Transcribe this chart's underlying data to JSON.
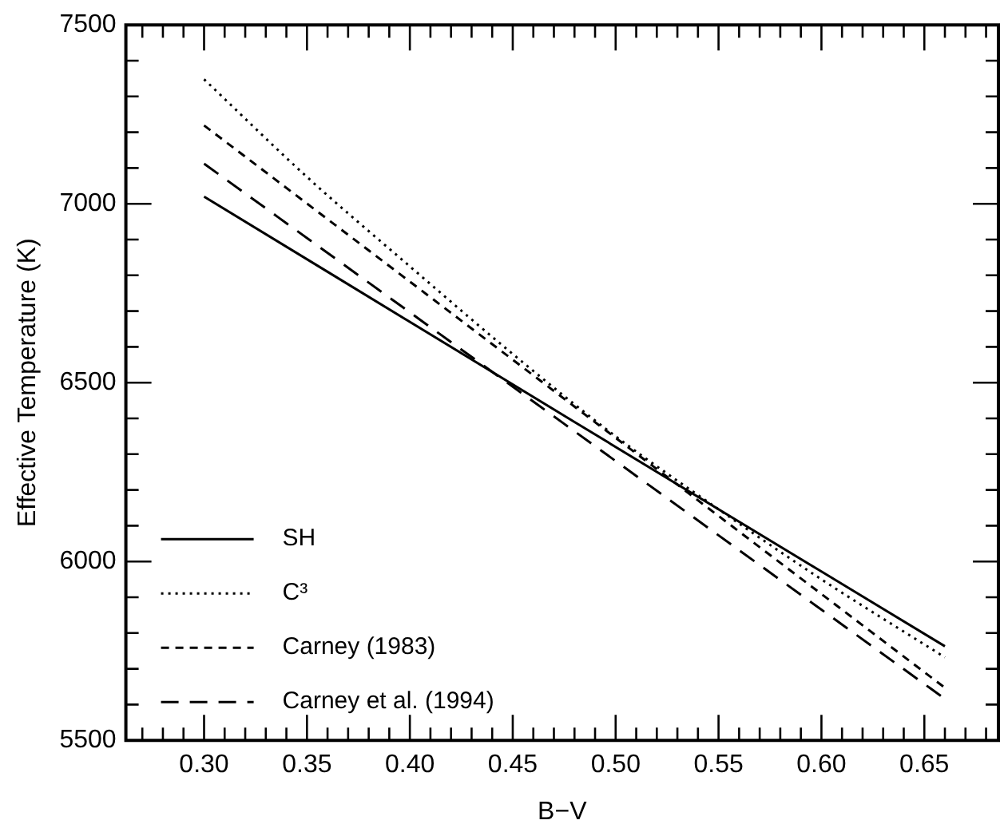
{
  "chart_data": {
    "type": "line",
    "xlabel": "B−V",
    "ylabel": "Effective Temperature (K)",
    "xlim": [
      0.262,
      0.686
    ],
    "ylim": [
      5500,
      7500
    ],
    "xticks": [
      {
        "value": 0.27,
        "label": null
      },
      {
        "value": 0.28,
        "label": null
      },
      {
        "value": 0.29,
        "label": null
      },
      {
        "value": 0.3,
        "label": "0.30"
      },
      {
        "value": 0.31,
        "label": null
      },
      {
        "value": 0.32,
        "label": null
      },
      {
        "value": 0.33,
        "label": null
      },
      {
        "value": 0.34,
        "label": null
      },
      {
        "value": 0.35,
        "label": "0.35"
      },
      {
        "value": 0.36,
        "label": null
      },
      {
        "value": 0.37,
        "label": null
      },
      {
        "value": 0.38,
        "label": null
      },
      {
        "value": 0.39,
        "label": null
      },
      {
        "value": 0.4,
        "label": "0.40"
      },
      {
        "value": 0.41,
        "label": null
      },
      {
        "value": 0.42,
        "label": null
      },
      {
        "value": 0.43,
        "label": null
      },
      {
        "value": 0.44,
        "label": null
      },
      {
        "value": 0.45,
        "label": "0.45"
      },
      {
        "value": 0.46,
        "label": null
      },
      {
        "value": 0.47,
        "label": null
      },
      {
        "value": 0.48,
        "label": null
      },
      {
        "value": 0.49,
        "label": null
      },
      {
        "value": 0.5,
        "label": "0.50"
      },
      {
        "value": 0.51,
        "label": null
      },
      {
        "value": 0.52,
        "label": null
      },
      {
        "value": 0.53,
        "label": null
      },
      {
        "value": 0.54,
        "label": null
      },
      {
        "value": 0.55,
        "label": "0.55"
      },
      {
        "value": 0.56,
        "label": null
      },
      {
        "value": 0.57,
        "label": null
      },
      {
        "value": 0.58,
        "label": null
      },
      {
        "value": 0.59,
        "label": null
      },
      {
        "value": 0.6,
        "label": "0.60"
      },
      {
        "value": 0.61,
        "label": null
      },
      {
        "value": 0.62,
        "label": null
      },
      {
        "value": 0.63,
        "label": null
      },
      {
        "value": 0.64,
        "label": null
      },
      {
        "value": 0.65,
        "label": "0.65"
      },
      {
        "value": 0.66,
        "label": null
      },
      {
        "value": 0.67,
        "label": null
      },
      {
        "value": 0.68,
        "label": null
      }
    ],
    "yticks": [
      5500,
      {
        "value": 5600,
        "label": null
      },
      {
        "value": 5700,
        "label": null
      },
      {
        "value": 5800,
        "label": null
      },
      {
        "value": 5900,
        "label": null
      },
      6000,
      {
        "value": 6100,
        "label": null
      },
      {
        "value": 6200,
        "label": null
      },
      {
        "value": 6300,
        "label": null
      },
      {
        "value": 6400,
        "label": null
      },
      6500,
      {
        "value": 6600,
        "label": null
      },
      {
        "value": 6700,
        "label": null
      },
      {
        "value": 6800,
        "label": null
      },
      {
        "value": 6900,
        "label": null
      },
      7000,
      {
        "value": 7100,
        "label": null
      },
      {
        "value": 7200,
        "label": null
      },
      {
        "value": 7300,
        "label": null
      },
      {
        "value": 7400,
        "label": null
      },
      7500
    ],
    "legend": "bottom left",
    "grid": false,
    "marker": "none",
    "series": [
      {
        "name": "SH",
        "color": "#000000",
        "line_style": "solid",
        "x": [
          0.3,
          0.48,
          0.66
        ],
        "values": [
          7020,
          6390,
          5763
        ]
      },
      {
        "name": "C³",
        "color": "#000000",
        "line_style": "dotted",
        "x": [
          0.3,
          0.35,
          0.4,
          0.45,
          0.5,
          0.554,
          0.6,
          0.66
        ],
        "values": [
          7348,
          7075,
          6825,
          6580,
          6350,
          6130,
          5950,
          5732
        ]
      },
      {
        "name": "Carney (1983)",
        "color": "#000000",
        "line_style": "dashed",
        "x": [
          0.3,
          0.48,
          0.66
        ],
        "values": [
          7219,
          6433,
          5647
        ]
      },
      {
        "name": "Carney et al. (1994)",
        "color": "#000000",
        "line_style": "longdash",
        "x": [
          0.3,
          0.48,
          0.66
        ],
        "values": [
          7112,
          6364,
          5616
        ]
      }
    ]
  }
}
